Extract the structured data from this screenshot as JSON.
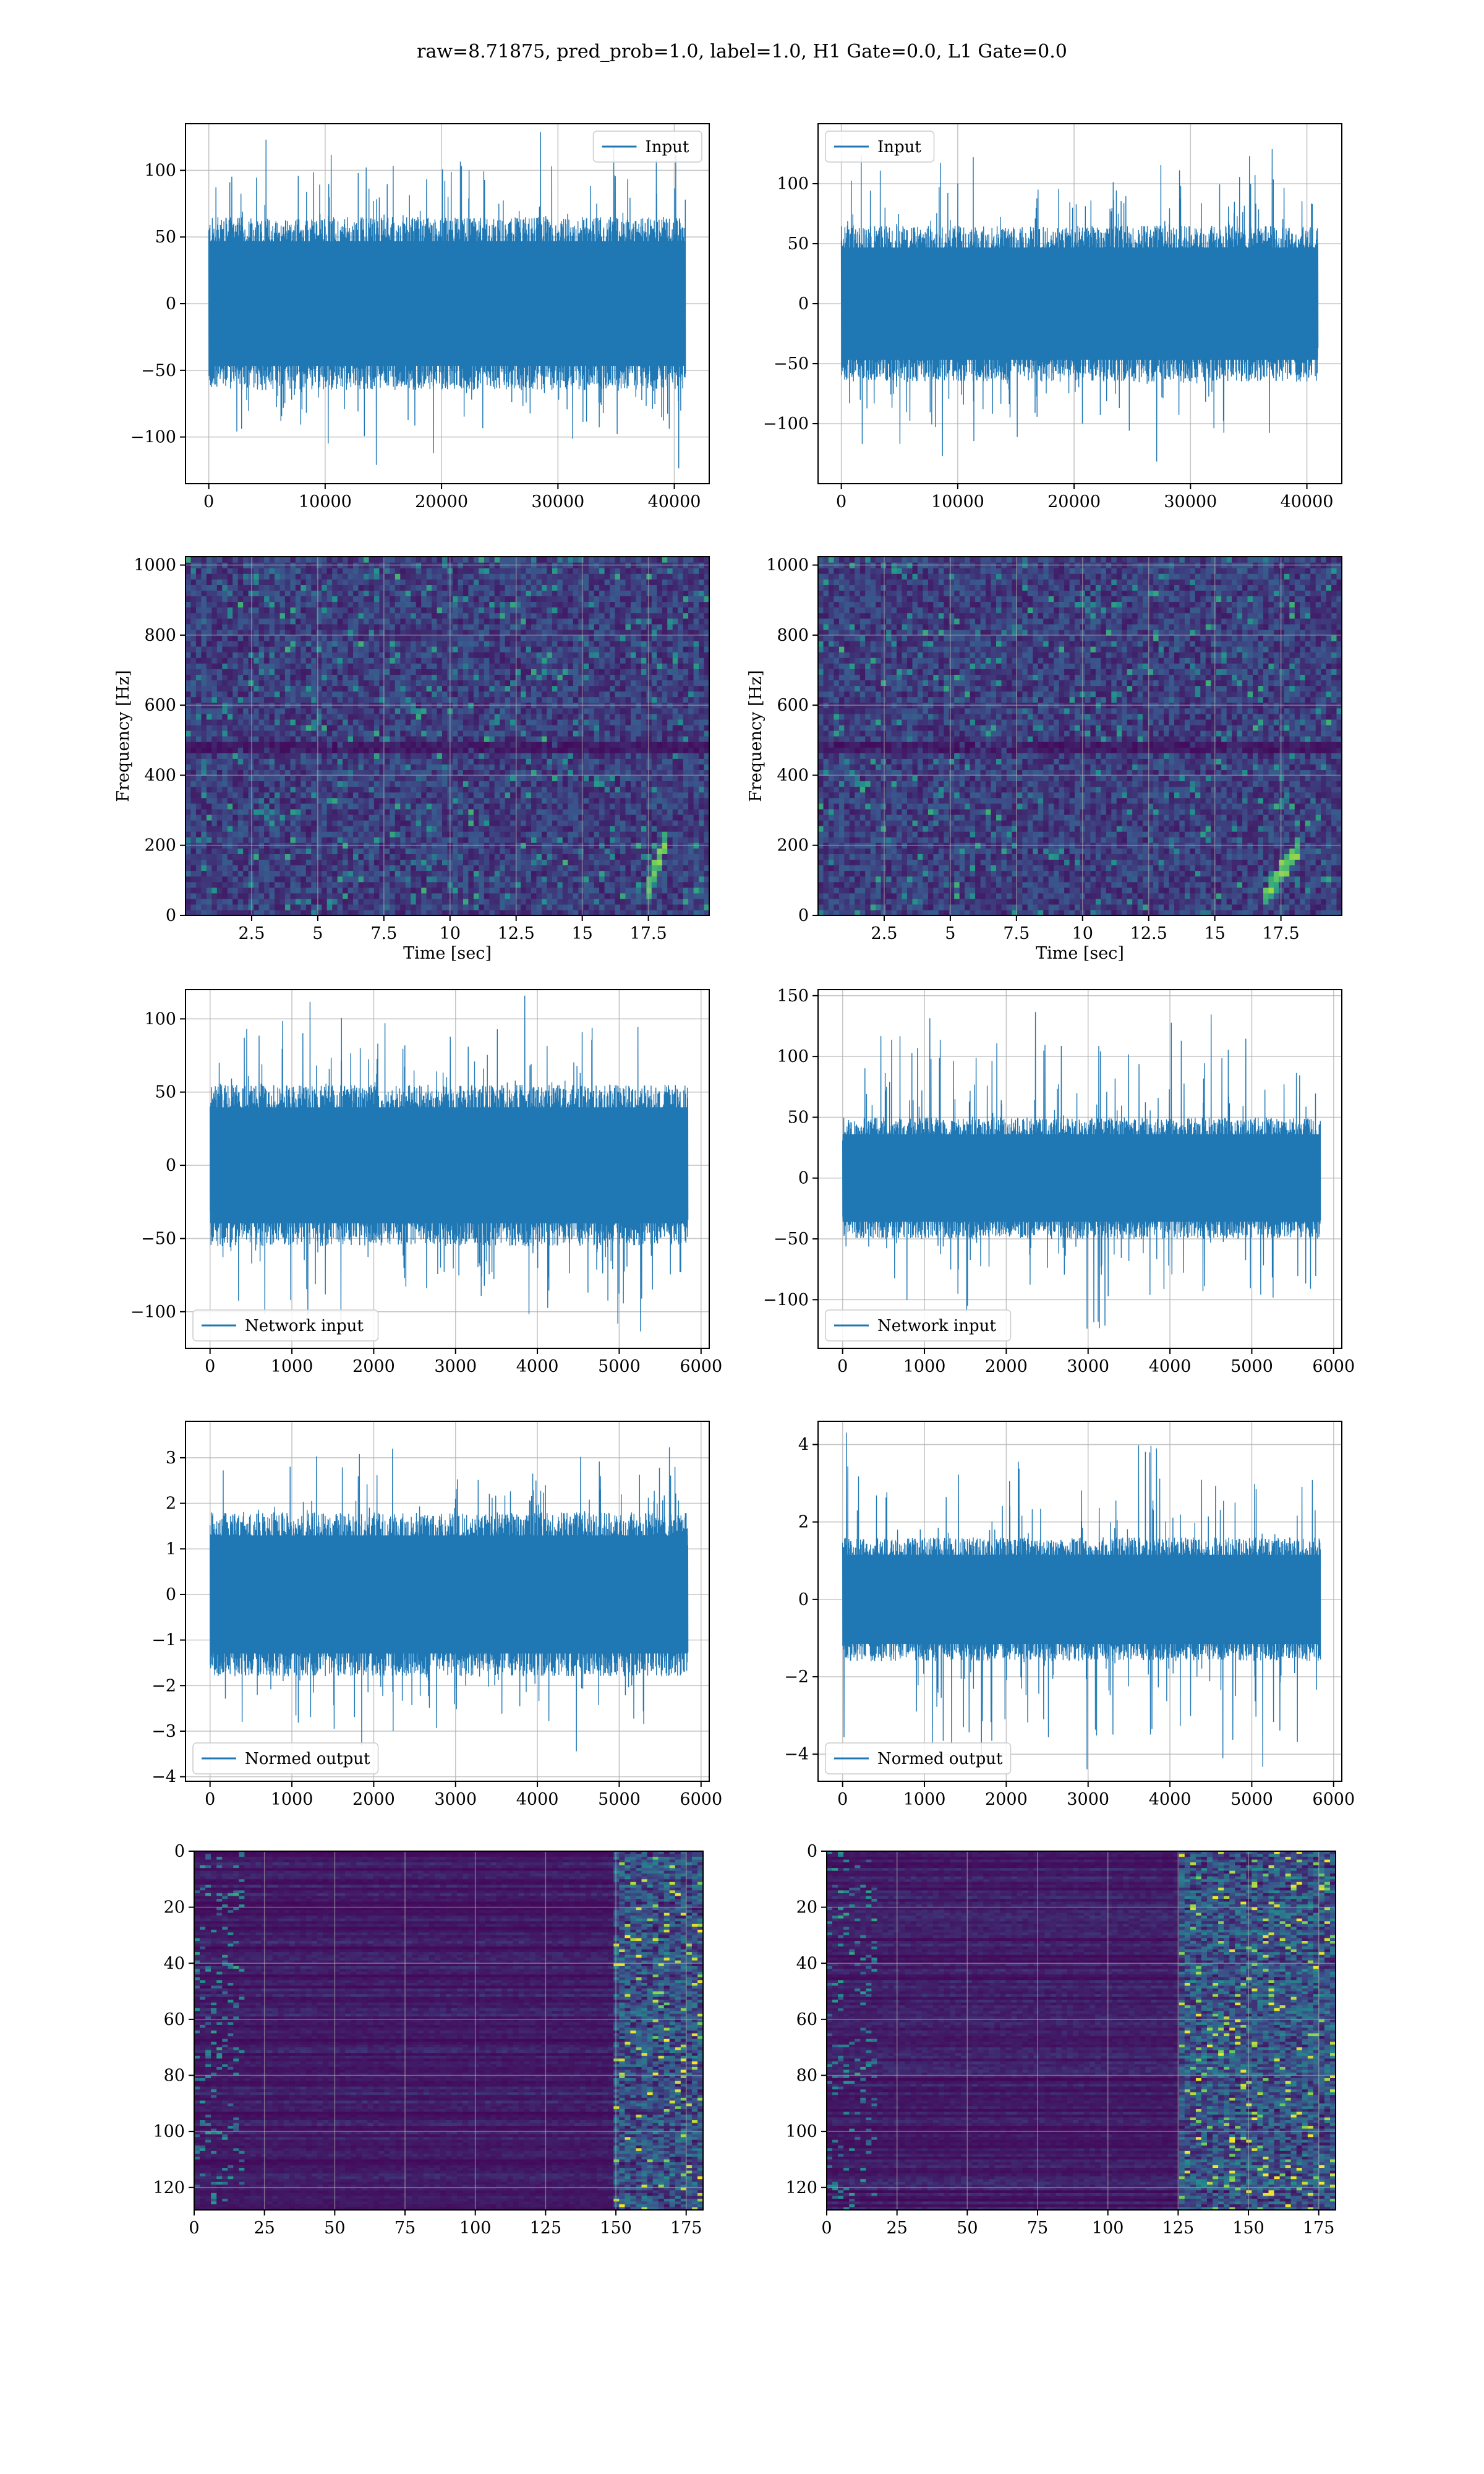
{
  "figure": {
    "title": "raw=8.71875, pred_prob=1.0, label=1.0, H1 Gate=0.0, L1 Gate=0.0",
    "colors": {
      "line": "#1f77b4",
      "grid": "#b0b0b0",
      "axes": "#000000",
      "viridis_low": "#440154",
      "viridis_mid": "#21918c",
      "viridis_high": "#fde725"
    }
  },
  "chart_data": [
    {
      "id": "input-h1",
      "type": "line",
      "row": 0,
      "col": 0,
      "legend": {
        "label": "Input",
        "placement": "upper right"
      },
      "xlim": [
        -2000,
        43000
      ],
      "ylim": [
        -135,
        135
      ],
      "xticks": [
        0,
        10000,
        20000,
        30000,
        40000
      ],
      "yticks": [
        -100,
        -50,
        0,
        50,
        100
      ],
      "xlabel": "",
      "ylabel": "",
      "series": {
        "x_range": [
          0,
          40960
        ],
        "envelope_typical": 65,
        "envelope_peak": 130
      }
    },
    {
      "id": "input-l1",
      "type": "line",
      "row": 0,
      "col": 1,
      "legend": {
        "label": "Input",
        "placement": "upper left"
      },
      "xlim": [
        -2000,
        43000
      ],
      "ylim": [
        -150,
        150
      ],
      "xticks": [
        0,
        10000,
        20000,
        30000,
        40000
      ],
      "yticks": [
        -100,
        -50,
        0,
        50,
        100
      ],
      "xlabel": "",
      "ylabel": "",
      "series": {
        "x_range": [
          0,
          40960
        ],
        "envelope_typical": 65,
        "envelope_peak": 134
      }
    },
    {
      "id": "spectrogram-h1",
      "type": "heatmap",
      "row": 1,
      "col": 0,
      "xlim": [
        0,
        19.8
      ],
      "ylim": [
        0,
        1024
      ],
      "xticks": [
        2.5,
        5.0,
        7.5,
        10.0,
        12.5,
        15.0,
        17.5
      ],
      "yticks": [
        0,
        200,
        400,
        600,
        800,
        1000
      ],
      "xlabel": "Time [sec]",
      "ylabel": "Frequency [Hz]",
      "colormap": "viridis",
      "chirp": {
        "t_start": 17.4,
        "t_end": 18.2,
        "f_start": 60,
        "f_end": 220
      },
      "dark_band_hz": 480
    },
    {
      "id": "spectrogram-l1",
      "type": "heatmap",
      "row": 1,
      "col": 1,
      "xlim": [
        0,
        19.8
      ],
      "ylim": [
        0,
        1024
      ],
      "xticks": [
        2.5,
        5.0,
        7.5,
        10.0,
        12.5,
        15.0,
        17.5
      ],
      "yticks": [
        0,
        200,
        400,
        600,
        800,
        1000
      ],
      "xlabel": "Time [sec]",
      "ylabel": "Frequency [Hz]",
      "colormap": "viridis",
      "chirp": {
        "t_start": 16.8,
        "t_end": 18.2,
        "f_start": 40,
        "f_end": 200
      },
      "dark_band_hz": 480
    },
    {
      "id": "network-input-h1",
      "type": "line",
      "row": 2,
      "col": 0,
      "legend": {
        "label": "Network input",
        "placement": "lower left"
      },
      "xlim": [
        -300,
        6100
      ],
      "ylim": [
        -125,
        120
      ],
      "xticks": [
        0,
        1000,
        2000,
        3000,
        4000,
        5000,
        6000
      ],
      "yticks": [
        -100,
        -50,
        0,
        50,
        100
      ],
      "xlabel": "",
      "ylabel": "",
      "series": {
        "x_range": [
          0,
          5840
        ],
        "envelope_typical": 55,
        "envelope_peak": 118
      }
    },
    {
      "id": "network-input-l1",
      "type": "line",
      "row": 2,
      "col": 1,
      "legend": {
        "label": "Network input",
        "placement": "lower left"
      },
      "xlim": [
        -300,
        6100
      ],
      "ylim": [
        -140,
        155
      ],
      "xticks": [
        0,
        1000,
        2000,
        3000,
        4000,
        5000,
        6000
      ],
      "yticks": [
        -100,
        -50,
        0,
        50,
        100,
        150
      ],
      "xlabel": "",
      "ylabel": "",
      "series": {
        "x_range": [
          0,
          5840
        ],
        "envelope_typical": 50,
        "envelope_peak": 140
      }
    },
    {
      "id": "normed-output-h1",
      "type": "line",
      "row": 3,
      "col": 0,
      "legend": {
        "label": "Normed output",
        "placement": "lower left"
      },
      "xlim": [
        -300,
        6100
      ],
      "ylim": [
        -4.1,
        3.8
      ],
      "xticks": [
        0,
        1000,
        2000,
        3000,
        4000,
        5000,
        6000
      ],
      "yticks": [
        -4,
        -3,
        -2,
        -1,
        0,
        1,
        2,
        3
      ],
      "xlabel": "",
      "ylabel": "",
      "series": {
        "x_range": [
          0,
          5840
        ],
        "envelope_typical": 1.8,
        "envelope_peak": 3.5
      }
    },
    {
      "id": "normed-output-l1",
      "type": "line",
      "row": 3,
      "col": 1,
      "legend": {
        "label": "Normed output",
        "placement": "lower left"
      },
      "xlim": [
        -300,
        6100
      ],
      "ylim": [
        -4.7,
        4.6
      ],
      "xticks": [
        0,
        1000,
        2000,
        3000,
        4000,
        5000,
        6000
      ],
      "yticks": [
        -4,
        -2,
        0,
        2,
        4
      ],
      "xlabel": "",
      "ylabel": "",
      "series": {
        "x_range": [
          0,
          5840
        ],
        "envelope_typical": 1.6,
        "envelope_peak": 4.5
      }
    },
    {
      "id": "feature-map-h1",
      "type": "heatmap",
      "row": 4,
      "col": 0,
      "xlim": [
        0,
        181
      ],
      "ylim": [
        128,
        0
      ],
      "xticks": [
        0,
        25,
        50,
        75,
        100,
        125,
        150,
        175
      ],
      "yticks": [
        0,
        20,
        40,
        60,
        80,
        100,
        120
      ],
      "xlabel": "",
      "ylabel": "",
      "colormap": "viridis",
      "shape": [
        128,
        182
      ],
      "active_columns": [
        150,
        181
      ]
    },
    {
      "id": "feature-map-l1",
      "type": "heatmap",
      "row": 4,
      "col": 1,
      "xlim": [
        0,
        181
      ],
      "ylim": [
        128,
        0
      ],
      "xticks": [
        0,
        25,
        50,
        75,
        100,
        125,
        150,
        175
      ],
      "yticks": [
        0,
        20,
        40,
        60,
        80,
        100,
        120
      ],
      "xlabel": "",
      "ylabel": "",
      "colormap": "viridis",
      "shape": [
        128,
        182
      ],
      "active_columns": [
        125,
        181
      ]
    }
  ]
}
